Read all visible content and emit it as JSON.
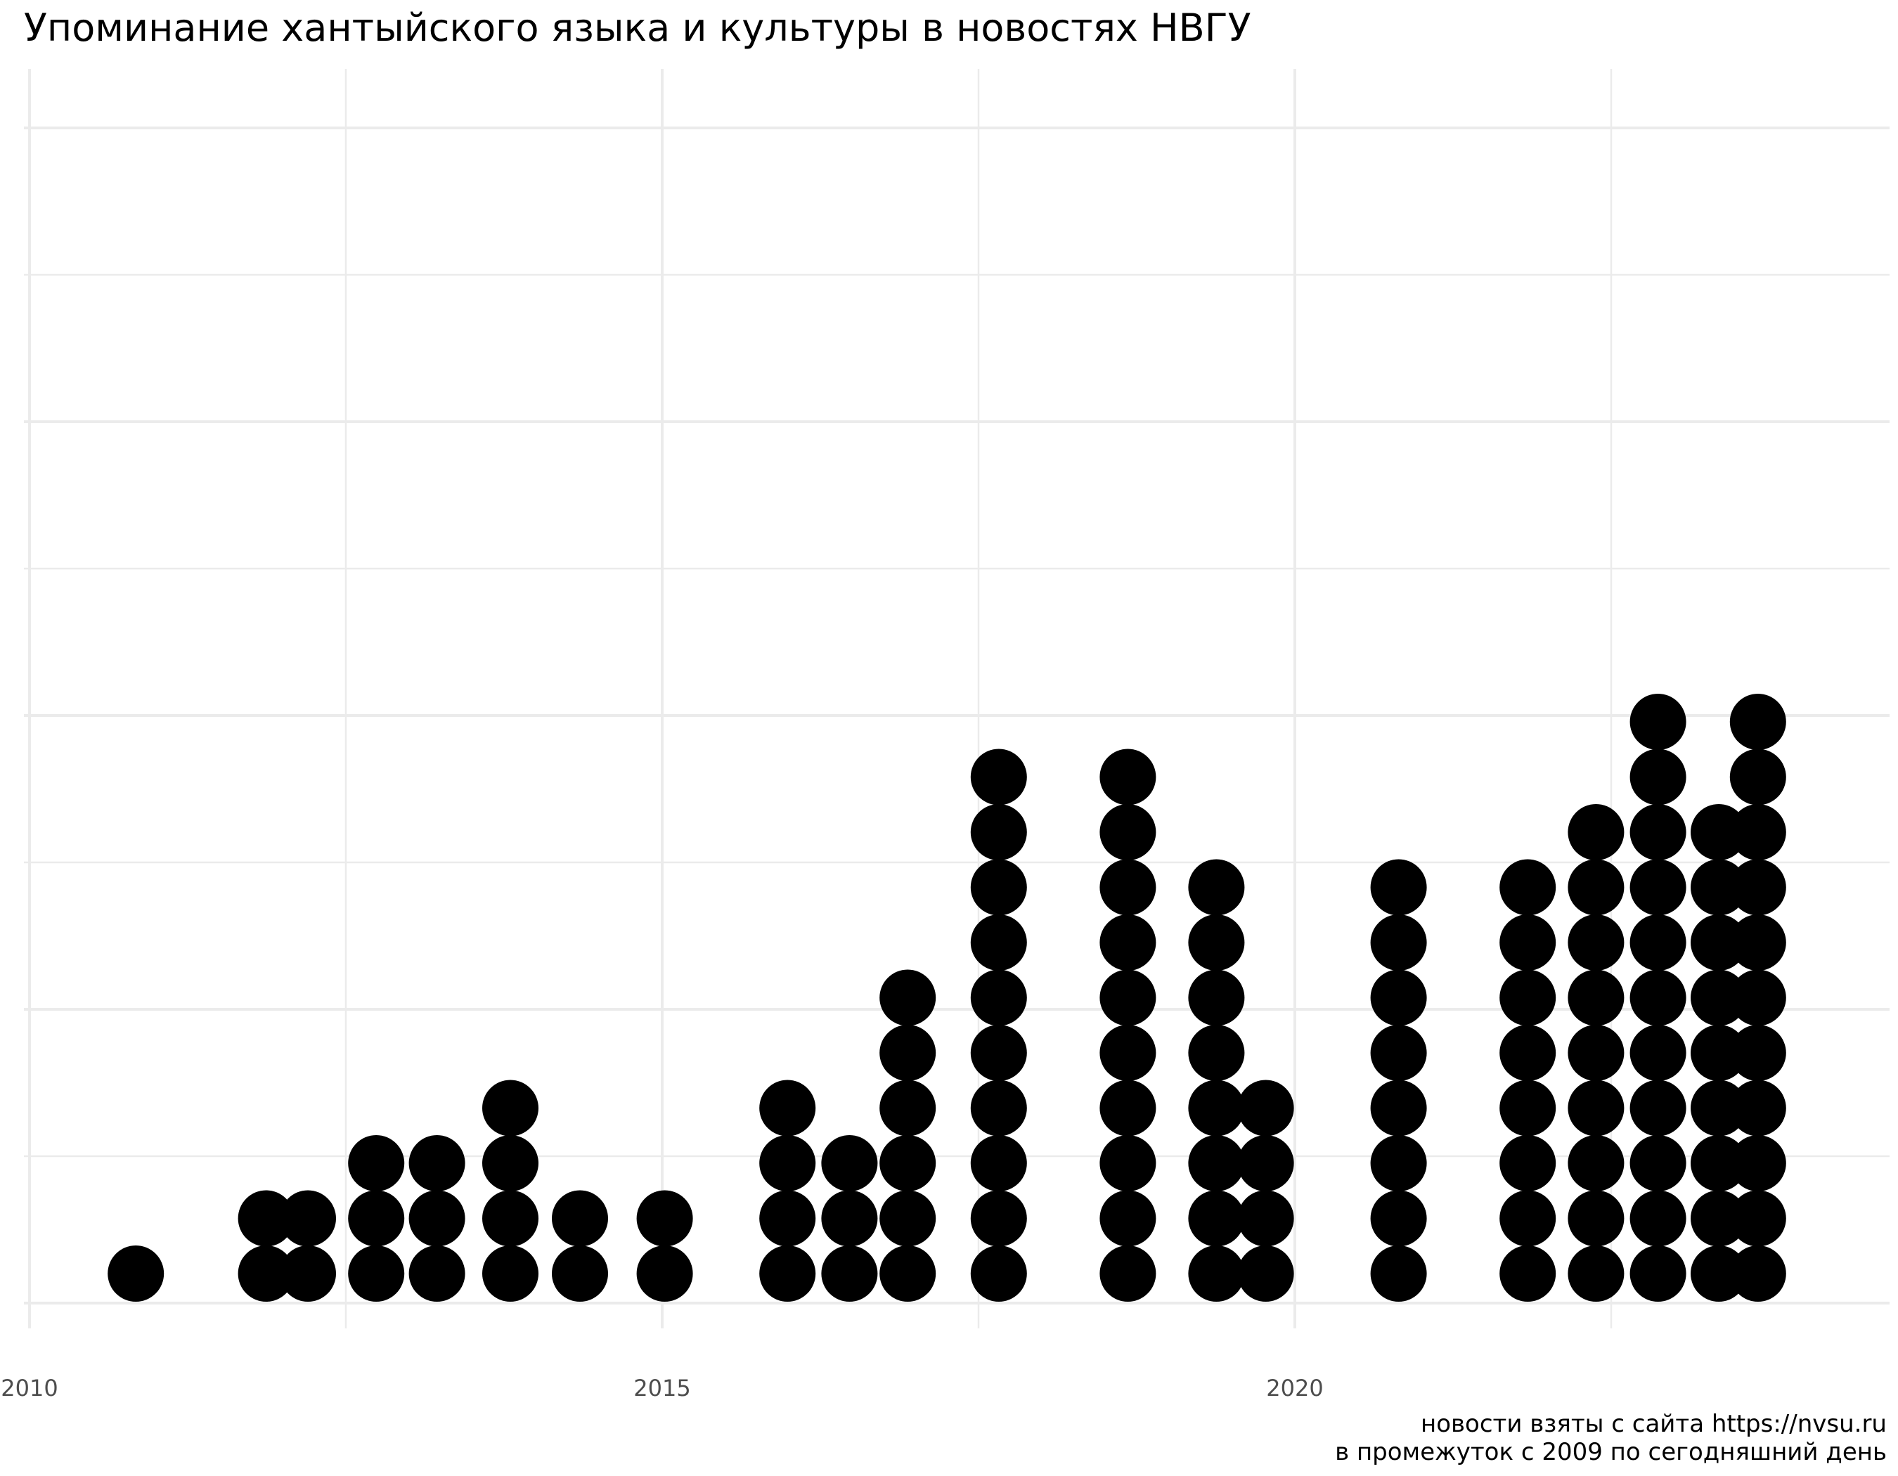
{
  "chart_data": {
    "type": "dotplot",
    "title": "Упоминание хантыйского языка и культуры в новостях НВГУ",
    "xlabel": "",
    "ylabel": "",
    "xlim": [
      2010,
      2024.6
    ],
    "x_ticks": [
      2010,
      2015,
      2020
    ],
    "y_axis_labels_shown": false,
    "grid": true,
    "dot_color": "#000000",
    "caption": [
      "новости взяты с сайта https://nvsu.ru",
      "в промежуток с 2009 по сегодняшний день"
    ],
    "stacks": [
      {
        "x": 2010.84,
        "count": 1
      },
      {
        "x": 2011.87,
        "count": 2
      },
      {
        "x": 2012.2,
        "count": 2
      },
      {
        "x": 2012.74,
        "count": 3
      },
      {
        "x": 2013.22,
        "count": 3
      },
      {
        "x": 2013.8,
        "count": 4
      },
      {
        "x": 2014.35,
        "count": 2
      },
      {
        "x": 2015.02,
        "count": 2
      },
      {
        "x": 2015.99,
        "count": 4
      },
      {
        "x": 2016.48,
        "count": 3
      },
      {
        "x": 2016.94,
        "count": 6
      },
      {
        "x": 2017.66,
        "count": 10
      },
      {
        "x": 2018.68,
        "count": 10
      },
      {
        "x": 2019.38,
        "count": 8
      },
      {
        "x": 2019.77,
        "count": 4
      },
      {
        "x": 2020.82,
        "count": 8
      },
      {
        "x": 2021.84,
        "count": 8
      },
      {
        "x": 2022.38,
        "count": 9
      },
      {
        "x": 2022.87,
        "count": 11
      },
      {
        "x": 2023.35,
        "count": 9
      },
      {
        "x": 2023.66,
        "count": 11
      }
    ]
  }
}
